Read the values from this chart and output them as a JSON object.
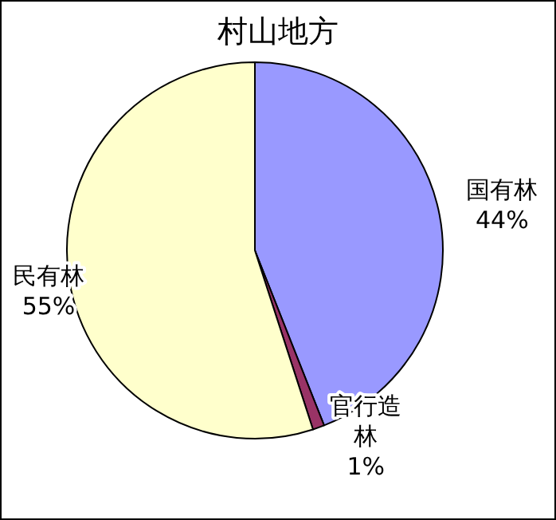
{
  "chart_data": {
    "type": "pie",
    "title": "村山地方",
    "categories": [
      "国有林",
      "官行造林",
      "民有林"
    ],
    "values": [
      44,
      1,
      55
    ],
    "colors": [
      "#9999ff",
      "#993366",
      "#ffffcc"
    ],
    "value_labels": [
      "44%",
      "1%",
      "55%"
    ]
  }
}
